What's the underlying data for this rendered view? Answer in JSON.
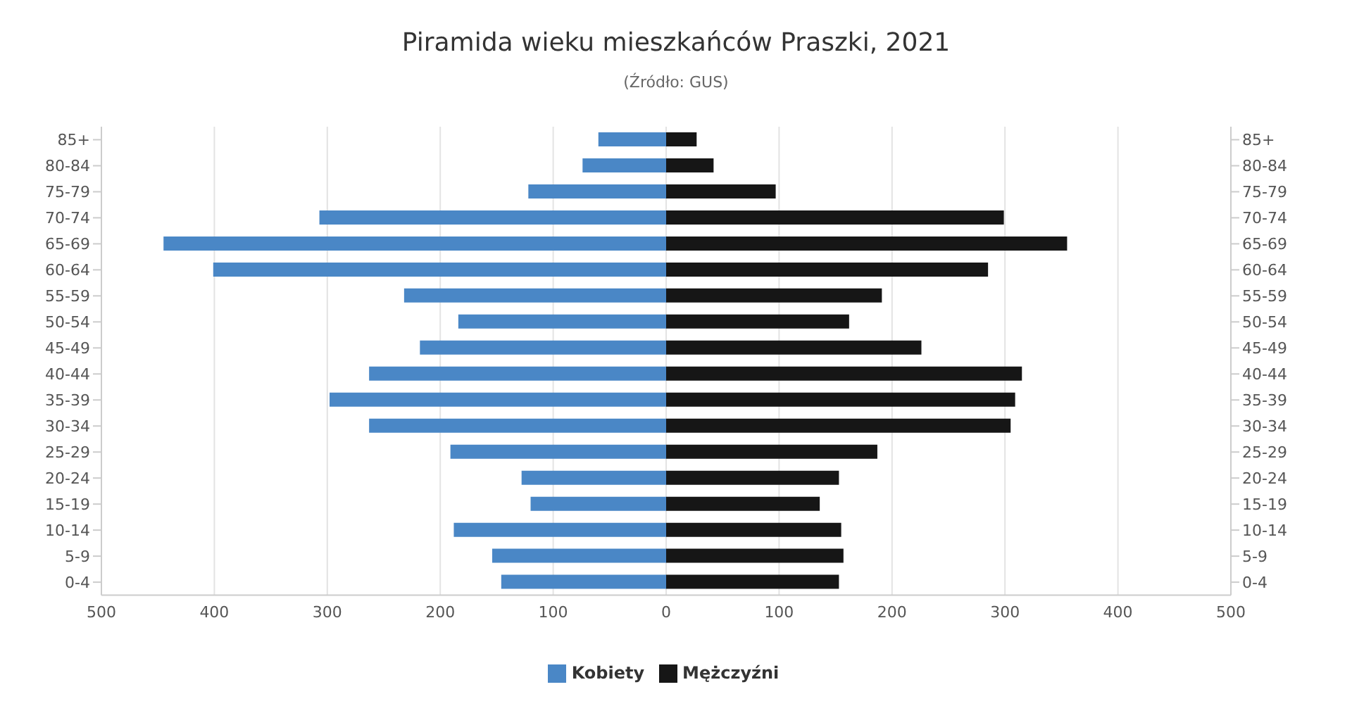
{
  "chart_data": {
    "type": "bar",
    "orientation": "horizontal",
    "stacked": true,
    "title": "Piramida wieku mieszkańców Praszki, 2021",
    "subtitle": "(Źródło: GUS)",
    "categories": [
      "85+",
      "80-84",
      "75-79",
      "70-74",
      "65-69",
      "60-64",
      "55-59",
      "50-54",
      "45-49",
      "40-44",
      "35-39",
      "30-34",
      "25-29",
      "20-24",
      "15-19",
      "10-14",
      "5-9",
      "0-4"
    ],
    "series": [
      {
        "name": "Kobiety",
        "color": "#4a87c6",
        "values": [
          -60,
          -74,
          -122,
          -307,
          -445,
          -401,
          -232,
          -184,
          -218,
          -263,
          -298,
          -263,
          -191,
          -128,
          -120,
          -188,
          -154,
          -146
        ]
      },
      {
        "name": "Mężczyźni",
        "color": "#161616",
        "values": [
          27,
          42,
          97,
          299,
          355,
          285,
          191,
          162,
          226,
          315,
          309,
          305,
          187,
          153,
          136,
          155,
          157,
          153
        ]
      }
    ],
    "xlim": [
      -500,
      500
    ],
    "xticks": [
      {
        "value": -500,
        "label": "500"
      },
      {
        "value": -400,
        "label": "400"
      },
      {
        "value": -300,
        "label": "300"
      },
      {
        "value": -200,
        "label": "200"
      },
      {
        "value": -100,
        "label": "100"
      },
      0,
      100,
      200,
      300,
      400,
      500
    ],
    "grid": "x",
    "legend": "bottom"
  }
}
